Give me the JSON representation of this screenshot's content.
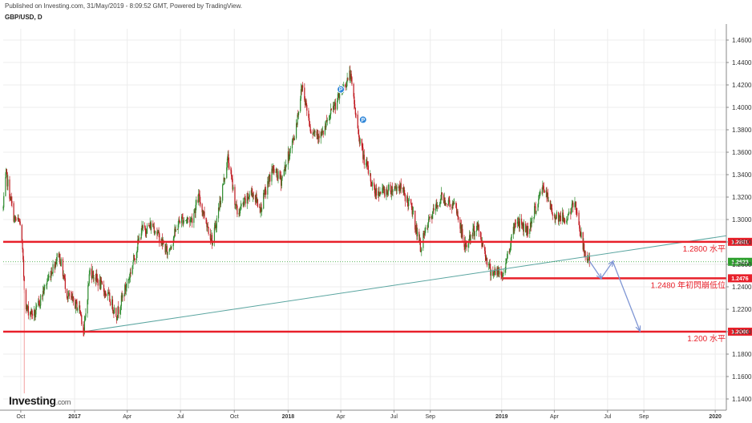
{
  "header": {
    "published": "Published on Investing.com, 31/May/2019 - 8:09:52 GMT, Powered by TradingView.",
    "symbol": "GBP/USD, D"
  },
  "logo": {
    "name": "Investing",
    "suffix": ".com"
  },
  "colors": {
    "up": "#2e8b2e",
    "down": "#c0181f",
    "level": "#e8202a",
    "trend": "#5aa5a0",
    "arrow": "#7f96d4",
    "current": "#2ea02e",
    "grid": "#ececec",
    "signal_marker": "#2f86d8"
  },
  "chart_data": {
    "type": "candlestick",
    "title": "GBP/USD, D",
    "xlabel": "",
    "ylabel": "",
    "ylim": [
      1.13,
      1.47
    ],
    "xlim": [
      "2016-09-01",
      "2020-01-20"
    ],
    "grid": true,
    "y_ticks": [
      "1.4600",
      "1.4400",
      "1.4200",
      "1.4000",
      "1.3800",
      "1.3600",
      "1.3400",
      "1.3200",
      "1.3000",
      "1.2800",
      "1.2600",
      "1.2400",
      "1.2200",
      "1.2000",
      "1.1800",
      "1.1600",
      "1.1400"
    ],
    "x_ticks": [
      {
        "label": "Oct",
        "date": "2016-10-01"
      },
      {
        "label": "2017",
        "date": "2017-01-01",
        "bold": true
      },
      {
        "label": "Apr",
        "date": "2017-04-01"
      },
      {
        "label": "Jul",
        "date": "2017-07-01"
      },
      {
        "label": "Oct",
        "date": "2017-10-01"
      },
      {
        "label": "2018",
        "date": "2018-01-01",
        "bold": true
      },
      {
        "label": "Apr",
        "date": "2018-04-01"
      },
      {
        "label": "Jul",
        "date": "2018-07-01"
      },
      {
        "label": "Sep",
        "date": "2018-09-01"
      },
      {
        "label": "2019",
        "date": "2019-01-01",
        "bold": true
      },
      {
        "label": "Apr",
        "date": "2019-04-01"
      },
      {
        "label": "Jul",
        "date": "2019-07-01"
      },
      {
        "label": "Sep",
        "date": "2019-09-01"
      },
      {
        "label": "2020",
        "date": "2020-01-01",
        "bold": true
      }
    ],
    "price_path": [
      [
        "2016-09-01",
        1.31
      ],
      [
        "2016-09-06",
        1.34
      ],
      [
        "2016-09-20",
        1.3
      ],
      [
        "2016-09-30",
        1.297
      ],
      [
        "2016-10-04",
        1.27
      ],
      [
        "2016-10-07",
        1.24
      ],
      [
        "2016-10-11",
        1.22
      ],
      [
        "2016-10-25",
        1.215
      ],
      [
        "2016-11-15",
        1.245
      ],
      [
        "2016-12-05",
        1.27
      ],
      [
        "2016-12-20",
        1.232
      ],
      [
        "2017-01-10",
        1.22
      ],
      [
        "2017-01-17",
        1.2
      ],
      [
        "2017-01-27",
        1.255
      ],
      [
        "2017-02-10",
        1.245
      ],
      [
        "2017-03-01",
        1.23
      ],
      [
        "2017-03-14",
        1.215
      ],
      [
        "2017-04-05",
        1.25
      ],
      [
        "2017-04-25",
        1.29
      ],
      [
        "2017-05-15",
        1.295
      ],
      [
        "2017-06-09",
        1.27
      ],
      [
        "2017-06-30",
        1.3
      ],
      [
        "2017-07-20",
        1.3
      ],
      [
        "2017-08-01",
        1.32
      ],
      [
        "2017-08-25",
        1.28
      ],
      [
        "2017-09-08",
        1.32
      ],
      [
        "2017-09-20",
        1.355
      ],
      [
        "2017-10-06",
        1.305
      ],
      [
        "2017-10-31",
        1.325
      ],
      [
        "2017-11-15",
        1.31
      ],
      [
        "2017-12-05",
        1.345
      ],
      [
        "2017-12-20",
        1.335
      ],
      [
        "2018-01-12",
        1.375
      ],
      [
        "2018-01-25",
        1.42
      ],
      [
        "2018-02-09",
        1.38
      ],
      [
        "2018-02-28",
        1.375
      ],
      [
        "2018-03-20",
        1.4
      ],
      [
        "2018-04-17",
        1.43
      ],
      [
        "2018-04-30",
        1.38
      ],
      [
        "2018-05-10",
        1.355
      ],
      [
        "2018-05-29",
        1.325
      ],
      [
        "2018-06-15",
        1.325
      ],
      [
        "2018-07-10",
        1.33
      ],
      [
        "2018-07-31",
        1.31
      ],
      [
        "2018-08-15",
        1.275
      ],
      [
        "2018-08-31",
        1.3
      ],
      [
        "2018-09-20",
        1.32
      ],
      [
        "2018-10-15",
        1.31
      ],
      [
        "2018-10-30",
        1.275
      ],
      [
        "2018-11-20",
        1.295
      ],
      [
        "2018-12-12",
        1.255
      ],
      [
        "2019-01-03",
        1.25
      ],
      [
        "2019-01-25",
        1.3
      ],
      [
        "2019-02-15",
        1.29
      ],
      [
        "2019-03-13",
        1.33
      ],
      [
        "2019-03-29",
        1.305
      ],
      [
        "2019-04-20",
        1.3
      ],
      [
        "2019-05-07",
        1.315
      ],
      [
        "2019-05-20",
        1.275
      ],
      [
        "2019-05-31",
        1.262
      ]
    ],
    "horizontal_levels": [
      {
        "value": 1.2801,
        "tag": "1.2801",
        "label": "1.2800 水平",
        "from": "2016-09-01"
      },
      {
        "value": 1.2476,
        "tag": "1.2476",
        "label": "1.2480 年初閃崩低位",
        "from": "2019-01-03"
      },
      {
        "value": 1.2,
        "tag": "1.2000",
        "label": "1.200 水平",
        "from": "2016-09-01"
      }
    ],
    "current_price": {
      "value": 1.2623,
      "tag": "1.2623"
    },
    "trendline": {
      "start": [
        "2017-01-16",
        1.2
      ],
      "end": [
        "2020-01-20",
        1.2855
      ]
    },
    "low_spike": {
      "date": "2016-10-07",
      "value": 1.145
    },
    "projection_arrows": [
      [
        [
          "2019-05-31",
          1.263
        ],
        [
          "2019-06-20",
          1.2476
        ]
      ],
      [
        [
          "2019-06-20",
          1.2476
        ],
        [
          "2019-07-10",
          1.2625
        ]
      ],
      [
        [
          "2019-07-10",
          1.2625
        ],
        [
          "2019-08-25",
          1.201
        ]
      ]
    ],
    "signal_markers": [
      {
        "date": "2018-04-01",
        "value": 1.416,
        "label": "P"
      },
      {
        "date": "2018-05-09",
        "value": 1.389,
        "label": "P"
      }
    ]
  }
}
